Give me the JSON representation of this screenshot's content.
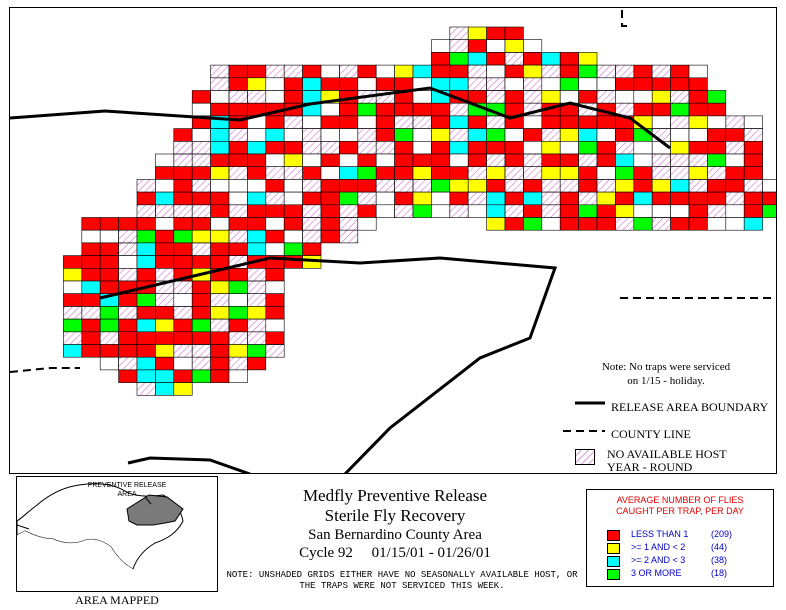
{
  "title": {
    "line1": "Medfly Preventive Release",
    "line2": "Sterile Fly Recovery",
    "line3": "San Bernardino County Area",
    "cycle": "Cycle 92",
    "dates": "01/15/01 - 01/26/01"
  },
  "footnote": "NOTE: UNSHADED GRIDS EITHER HAVE NO SEASONALLY AVAILABLE HOST, OR THE TRAPS WERE NOT SERVICED THIS WEEK.",
  "holiday_note": {
    "line1": "Note: No traps were serviced",
    "line2": "on 1/15 - holiday."
  },
  "map_legend": {
    "release_area": "RELEASE AREA BOUNDARY",
    "county_line": "COUNTY LINE",
    "no_host_line1": "NO AVAILABLE HOST",
    "no_host_line2": "YEAR - ROUND"
  },
  "inset": {
    "label_line1": "PREVENTIVE RELEASE",
    "label_line2": "AREA",
    "caption": "AREA MAPPED"
  },
  "flies_legend": {
    "title_line1": "AVERAGE NUMBER OF FLIES",
    "title_line2": "CAUGHT PER TRAP, PER DAY",
    "items": [
      {
        "label": "LESS THAN 1",
        "count": "(209)",
        "color": "#ff0000"
      },
      {
        "label": ">= 1 AND < 2",
        "count": "(44)",
        "color": "#ffff00"
      },
      {
        "label": ">= 2 AND < 3",
        "count": "(38)",
        "color": "#00ffff"
      },
      {
        "label": "3 OR MORE",
        "count": "(18)",
        "color": "#00ff00"
      }
    ]
  },
  "colors": {
    "red": "#ff0000",
    "yellow": "#ffff00",
    "cyan": "#00ffff",
    "green": "#00ff00",
    "hatch": "#d070d0"
  }
}
